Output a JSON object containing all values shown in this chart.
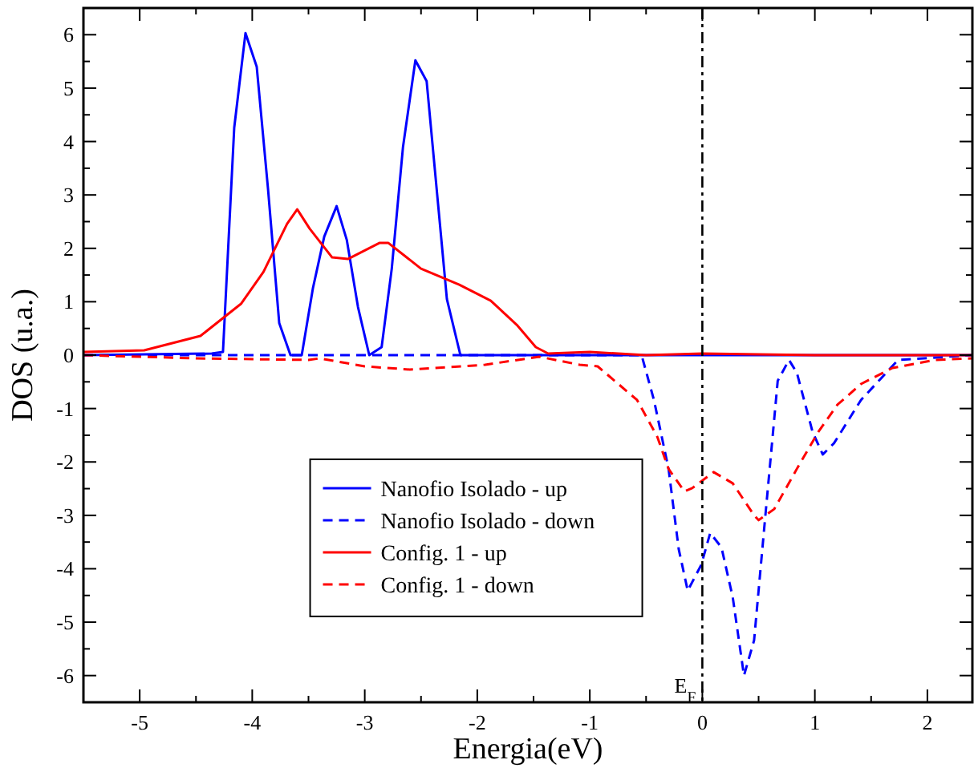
{
  "chart_data": {
    "type": "line",
    "xlabel": "Energia(eV)",
    "ylabel": "DOS (u.a.)",
    "xlim": [
      -5.5,
      2.4
    ],
    "ylim": [
      -6.5,
      6.5
    ],
    "xticks": [
      {
        "value": -5.5,
        "label": null
      },
      -5,
      {
        "value": -4.5,
        "label": null
      },
      -4,
      {
        "value": -3.5,
        "label": null
      },
      -3,
      {
        "value": -2.5,
        "label": null
      },
      -2,
      {
        "value": -1.5,
        "label": null
      },
      -1,
      {
        "value": -0.5,
        "label": null
      },
      0,
      {
        "value": 0.5,
        "label": null
      },
      1,
      {
        "value": 1.5,
        "label": null
      },
      2
    ],
    "yticks": [
      -6,
      {
        "value": -5.5,
        "label": null
      },
      -5,
      {
        "value": -4.5,
        "label": null
      },
      -4,
      {
        "value": -3.5,
        "label": null
      },
      -3,
      {
        "value": -2.5,
        "label": null
      },
      -2,
      {
        "value": -1.5,
        "label": null
      },
      -1,
      {
        "value": -0.5,
        "label": null
      },
      0,
      {
        "value": 0.5,
        "label": null
      },
      1,
      {
        "value": 1.5,
        "label": null
      },
      2,
      {
        "value": 2.5,
        "label": null
      },
      3,
      {
        "value": 3.5,
        "label": null
      },
      4,
      {
        "value": 4.5,
        "label": null
      },
      5,
      {
        "value": 5.5,
        "label": null
      },
      6
    ],
    "grid": false,
    "legend": "bottom",
    "marker": "none",
    "ref_lines": [
      {
        "axis": "x",
        "value": 0,
        "label": "E$_{F}$",
        "color": "#000000",
        "line_style": "dashdot"
      }
    ],
    "series": [
      {
        "name": "Nanofio Isolado - up",
        "color": "#0000ff",
        "line_style": "solid",
        "x": [
          -5.5,
          -4.36,
          -4.26,
          -4.16,
          -4.06,
          -3.96,
          -3.86,
          -3.76,
          -3.66,
          -3.56,
          -3.46,
          -3.36,
          -3.25,
          -3.16,
          -3.06,
          -2.96,
          -2.85,
          -2.76,
          -2.66,
          -2.55,
          -2.45,
          -2.27,
          -2.15,
          -1.0,
          1.0,
          2.4
        ],
        "values": [
          0,
          0.03,
          0.06,
          4.26,
          6.03,
          5.4,
          3.12,
          0.6,
          0,
          0,
          1.26,
          2.22,
          2.79,
          2.16,
          0.9,
          0,
          0.15,
          1.62,
          3.9,
          5.52,
          5.13,
          1.05,
          0,
          0,
          0,
          0
        ]
      },
      {
        "name": "Nanofio Isolado - down",
        "color": "#0000ff",
        "line_style": "dashed",
        "x": [
          -5.5,
          -4.5,
          -3.5,
          -2.5,
          -1.5,
          -0.54,
          -0.43,
          -0.3,
          -0.21,
          -0.13,
          -0.01,
          0.07,
          0.17,
          0.27,
          0.37,
          0.46,
          0.55,
          0.67,
          0.77,
          0.84,
          0.98,
          1.07,
          1.17,
          1.41,
          1.74,
          2.4
        ],
        "values": [
          0,
          0,
          0,
          0,
          0,
          0,
          -0.84,
          -2.13,
          -3.63,
          -4.41,
          -3.93,
          -3.33,
          -3.6,
          -4.53,
          -6.0,
          -5.34,
          -3.24,
          -0.48,
          -0.09,
          -0.33,
          -1.44,
          -1.86,
          -1.65,
          -0.84,
          -0.09,
          0
        ]
      },
      {
        "name": "Config. 1 - up",
        "color": "#ff0000",
        "line_style": "solid",
        "x": [
          -5.5,
          -4.96,
          -4.46,
          -4.1,
          -3.9,
          -3.69,
          -3.6,
          -3.49,
          -3.29,
          -3.15,
          -2.87,
          -2.79,
          -2.5,
          -2.16,
          -1.88,
          -1.65,
          -1.48,
          -1.37,
          -1.0,
          -0.5,
          0,
          1.0,
          2.4
        ],
        "values": [
          0.06,
          0.09,
          0.36,
          0.96,
          1.56,
          2.46,
          2.73,
          2.37,
          1.83,
          1.8,
          2.1,
          2.1,
          1.62,
          1.32,
          1.02,
          0.57,
          0.15,
          0.03,
          0.06,
          0.0,
          0.03,
          0.0,
          0.0
        ]
      },
      {
        "name": "Config. 1 - down",
        "color": "#ff0000",
        "line_style": "dashed",
        "x": [
          -5.5,
          -4.5,
          -3.5,
          -3.4,
          -3.0,
          -2.6,
          -1.93,
          -1.45,
          -1.09,
          -0.93,
          -0.58,
          -0.4,
          -0.3,
          -0.16,
          -0.09,
          0.1,
          0.27,
          0.46,
          0.5,
          0.64,
          0.84,
          1.03,
          1.2,
          1.41,
          1.69,
          2.07,
          2.4
        ],
        "values": [
          0,
          -0.06,
          -0.09,
          -0.06,
          -0.21,
          -0.27,
          -0.18,
          -0.03,
          -0.18,
          -0.21,
          -0.84,
          -1.53,
          -2.13,
          -2.55,
          -2.49,
          -2.19,
          -2.4,
          -3.0,
          -3.09,
          -2.88,
          -2.13,
          -1.44,
          -0.93,
          -0.54,
          -0.24,
          -0.09,
          -0.06
        ]
      }
    ]
  }
}
